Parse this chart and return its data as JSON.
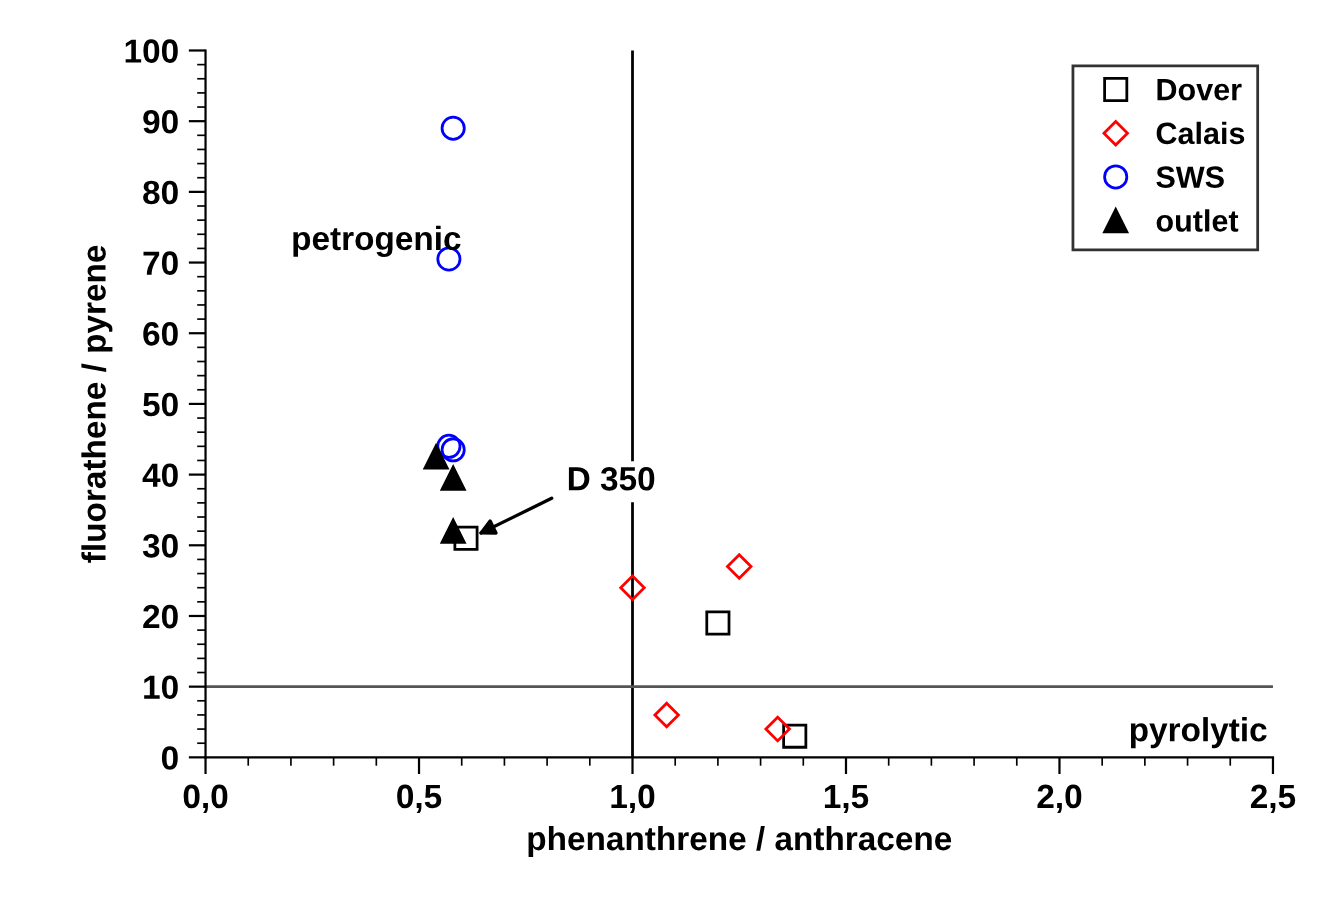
{
  "chart_data": {
    "type": "scatter",
    "xlabel": "phenanthrene / anthracene",
    "ylabel": "fluorathene / pyrene",
    "xlim": [
      0,
      2.5
    ],
    "ylim": [
      0,
      100
    ],
    "xticks": [
      {
        "value": 0,
        "label": "0,0"
      },
      {
        "value": 0.5,
        "label": "0,5"
      },
      {
        "value": 1.0,
        "label": "1,0"
      },
      {
        "value": 1.5,
        "label": "1,5"
      },
      {
        "value": 2.0,
        "label": "2,0"
      },
      {
        "value": 2.5,
        "label": "2,5"
      }
    ],
    "yticks": [
      0,
      10,
      20,
      30,
      40,
      50,
      60,
      70,
      80,
      90,
      100
    ],
    "grid": false,
    "legend": "top right",
    "series": [
      {
        "name": "Dover",
        "color": "#000000",
        "marker": "square",
        "x": [
          0.61,
          1.2,
          1.38
        ],
        "values": [
          31,
          19,
          3
        ]
      },
      {
        "name": "Calais",
        "color": "#ff0000",
        "marker": "diamond",
        "x": [
          1.0,
          1.08,
          1.25,
          1.34
        ],
        "values": [
          24,
          6,
          27,
          4
        ]
      },
      {
        "name": "SWS",
        "color": "#0000ff",
        "marker": "circle",
        "x": [
          0.58,
          0.57,
          0.57,
          0.58
        ],
        "values": [
          89,
          70.5,
          44,
          43.5
        ]
      },
      {
        "name": "outlet",
        "color": "#000000",
        "marker": "triangle",
        "x": [
          0.54,
          0.58,
          0.58
        ],
        "values": [
          42.5,
          39.5,
          32
        ]
      }
    ],
    "ref_lines": [
      {
        "axis": "x",
        "value": 1.0,
        "color": "#000000"
      },
      {
        "axis": "y",
        "value": 10,
        "color": "#555555"
      }
    ],
    "annotations": [
      "petrogenic",
      "pyrolytic",
      {
        "text": "D 350",
        "x": 0.62,
        "y": 31
      }
    ]
  }
}
